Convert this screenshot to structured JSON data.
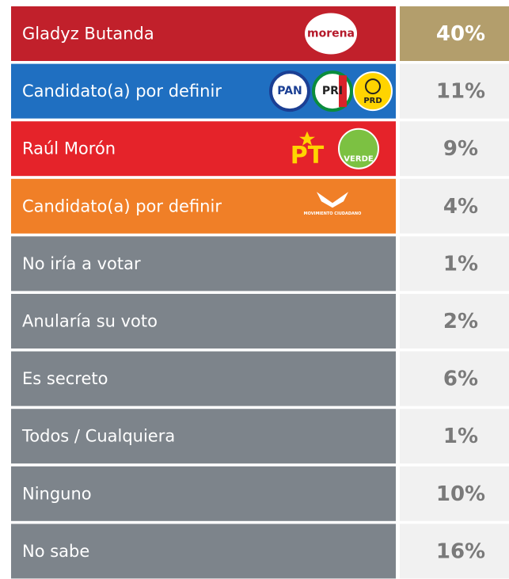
{
  "table": {
    "rows": [
      {
        "label": "Gladyz Butanda",
        "value": "40%",
        "logos": [
          "morena"
        ]
      },
      {
        "label": "Candidato(a) por definir",
        "value": "11%",
        "logos": [
          "PAN",
          "PRI",
          "PRD"
        ]
      },
      {
        "label": "Raúl Morón",
        "value": "9%",
        "logos": [
          "PT",
          "VERDE"
        ]
      },
      {
        "label": "Candidato(a) por definir",
        "value": "4%",
        "logos": [
          "MOVIMIENTO CIUDADANO"
        ]
      },
      {
        "label": "No iría a votar",
        "value": "1%"
      },
      {
        "label": "Anularía su voto",
        "value": "2%"
      },
      {
        "label": "Es secreto",
        "value": "6%"
      },
      {
        "label": "Todos / Cualquiera",
        "value": "1%"
      },
      {
        "label": "Ninguno",
        "value": "10%"
      },
      {
        "label": "No sabe",
        "value": "16%"
      }
    ]
  }
}
